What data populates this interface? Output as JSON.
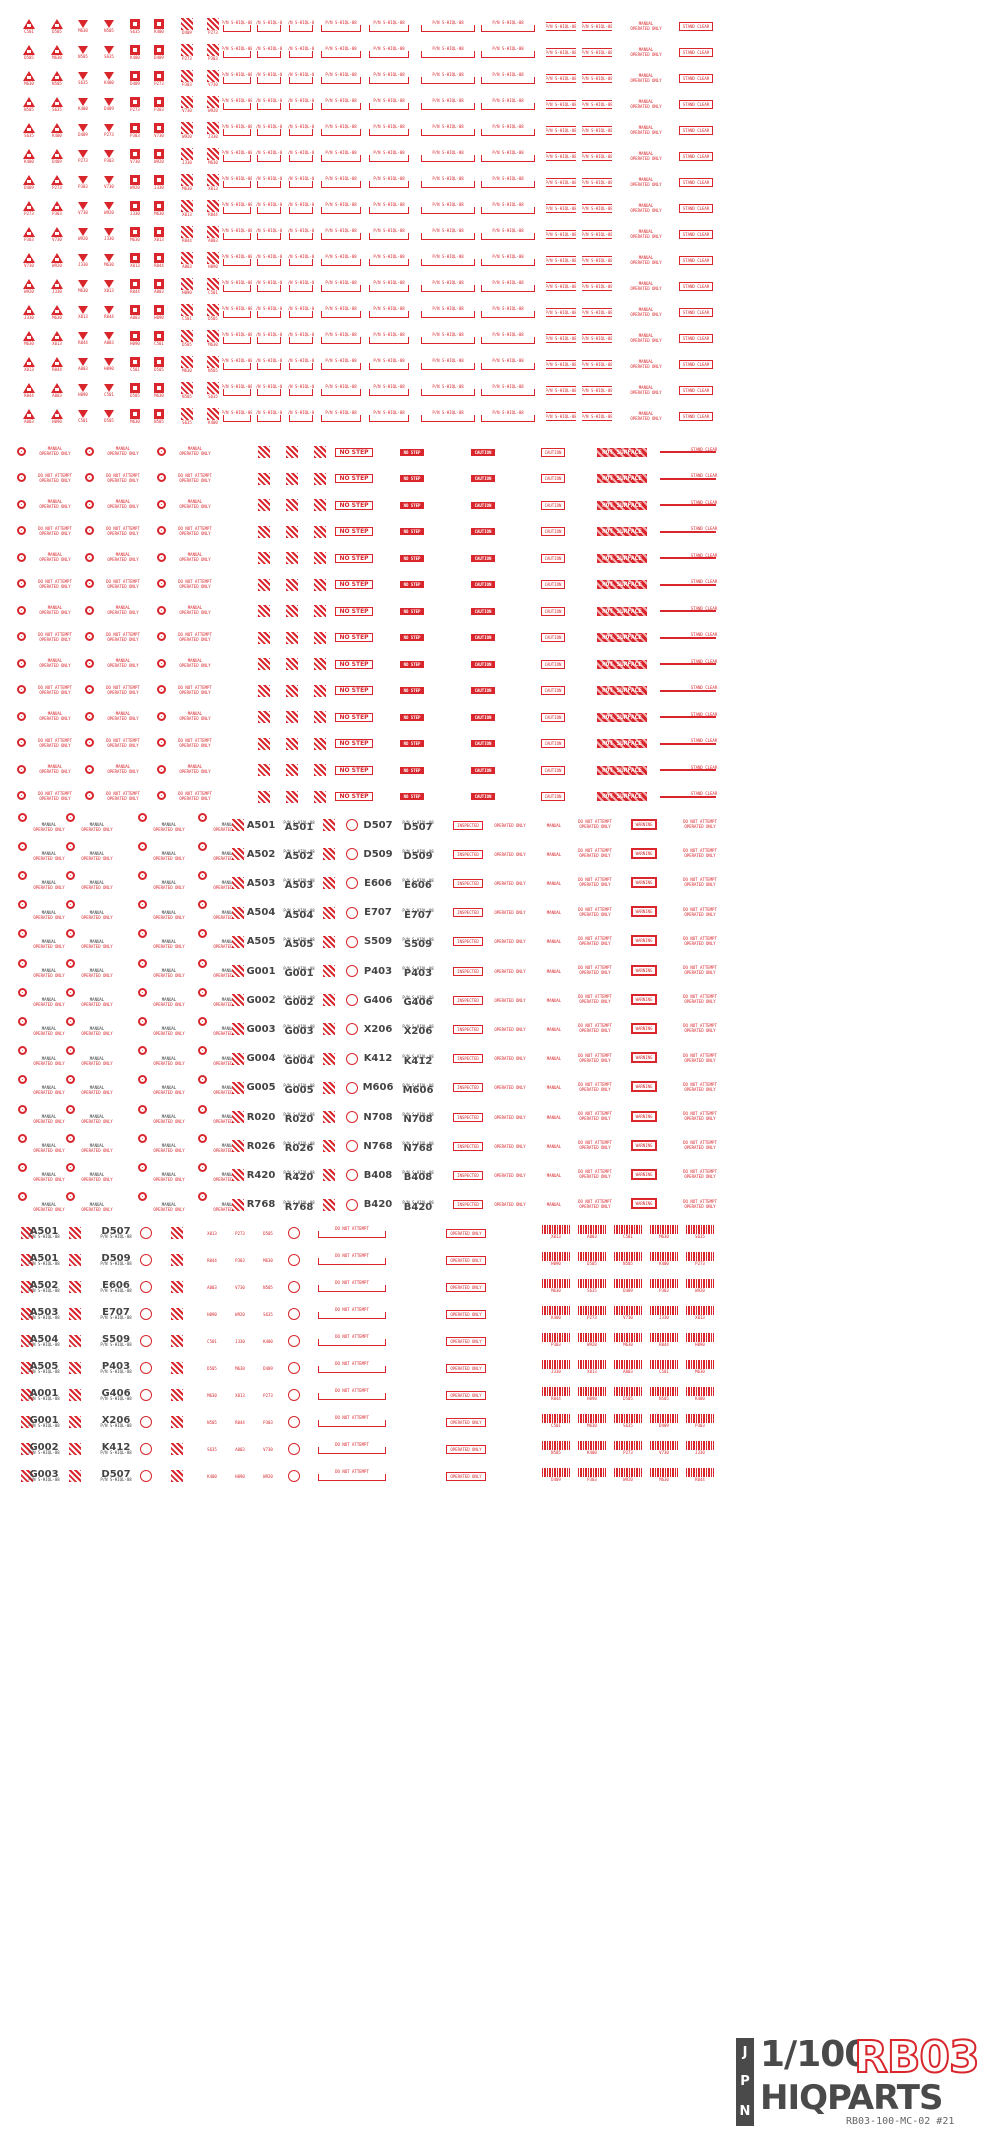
{
  "logo": {
    "region": "JPN",
    "scale": "1/100",
    "series": "RB03",
    "brand": "HIQPARTS",
    "code": "RB03-100-MC-02 #21"
  },
  "colors": {
    "red": "#d8262c",
    "gray": "#4a4a4a"
  },
  "labels": {
    "no_step": "NO STEP",
    "caution": "CAUTION",
    "hot_surface": "HOT SURFACE",
    "stand_clear": "STAND CLEAR",
    "manual": "MANUAL",
    "operated_only": "OPERATED ONLY",
    "do_not_attempt": "DO NOT ATTEMPT",
    "inspected": "INSPECTED",
    "pn": "P/N S-HIQL-08",
    "warning": "WARNING"
  },
  "unit_codes": [
    "A501",
    "A502",
    "A503",
    "A504",
    "A505",
    "G001",
    "G002",
    "G003",
    "G004",
    "G005",
    "R020",
    "R026",
    "R420",
    "R768"
  ],
  "unit_codes_b": [
    "D507",
    "D509",
    "E606",
    "E707",
    "S509",
    "P403",
    "G406",
    "X206",
    "K412",
    "M606",
    "N708",
    "N768",
    "B408",
    "B420"
  ],
  "lower_codes_a": [
    "A501",
    "A501",
    "A502",
    "A503",
    "A504",
    "A505",
    "A001",
    "G001",
    "G002",
    "G003"
  ],
  "lower_codes_b": [
    "D507",
    "D509",
    "E606",
    "E707",
    "S509",
    "P403",
    "G406",
    "X206",
    "K412"
  ],
  "small_codes": [
    "C501",
    "D505",
    "M630",
    "N505",
    "S635",
    "K400",
    "D409",
    "P273",
    "P303",
    "V730",
    "W920",
    "J330",
    "M630",
    "X013",
    "R044",
    "A003",
    "H090"
  ]
}
